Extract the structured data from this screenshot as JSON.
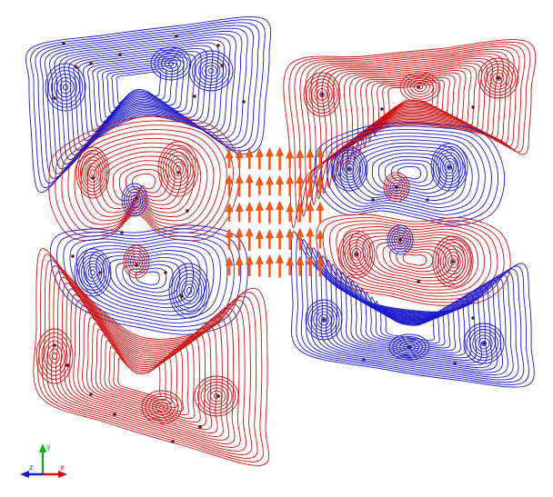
{
  "scene": {
    "background": "#ffffff",
    "colors": {
      "positive": "#cc1111",
      "negative": "#1a1acc",
      "arrow": "#ff5a1a",
      "arrow_shade": "#c84a10",
      "axis_x": "#d01010",
      "axis_y": "#10b010",
      "axis_z": "#1020d0"
    },
    "panels": [
      {
        "name": "left-panel",
        "lobes": [
          {
            "name": "left-top-outer-vortex",
            "color": "negative"
          },
          {
            "name": "left-upper-inner-vortex",
            "color": "positive"
          },
          {
            "name": "left-lower-inner-vortex",
            "color": "negative"
          },
          {
            "name": "left-bottom-outer-vortex",
            "color": "positive"
          }
        ]
      },
      {
        "name": "right-panel",
        "lobes": [
          {
            "name": "right-top-outer-vortex",
            "color": "positive"
          },
          {
            "name": "right-upper-inner-vortex",
            "color": "negative"
          },
          {
            "name": "right-lower-inner-vortex",
            "color": "positive"
          },
          {
            "name": "right-bottom-outer-vortex",
            "color": "negative"
          }
        ]
      }
    ],
    "arrow_field": {
      "columns": 10,
      "rows": 5,
      "direction": "up"
    },
    "axes_icon": {
      "x": "x",
      "y": "y",
      "z": "z"
    }
  }
}
